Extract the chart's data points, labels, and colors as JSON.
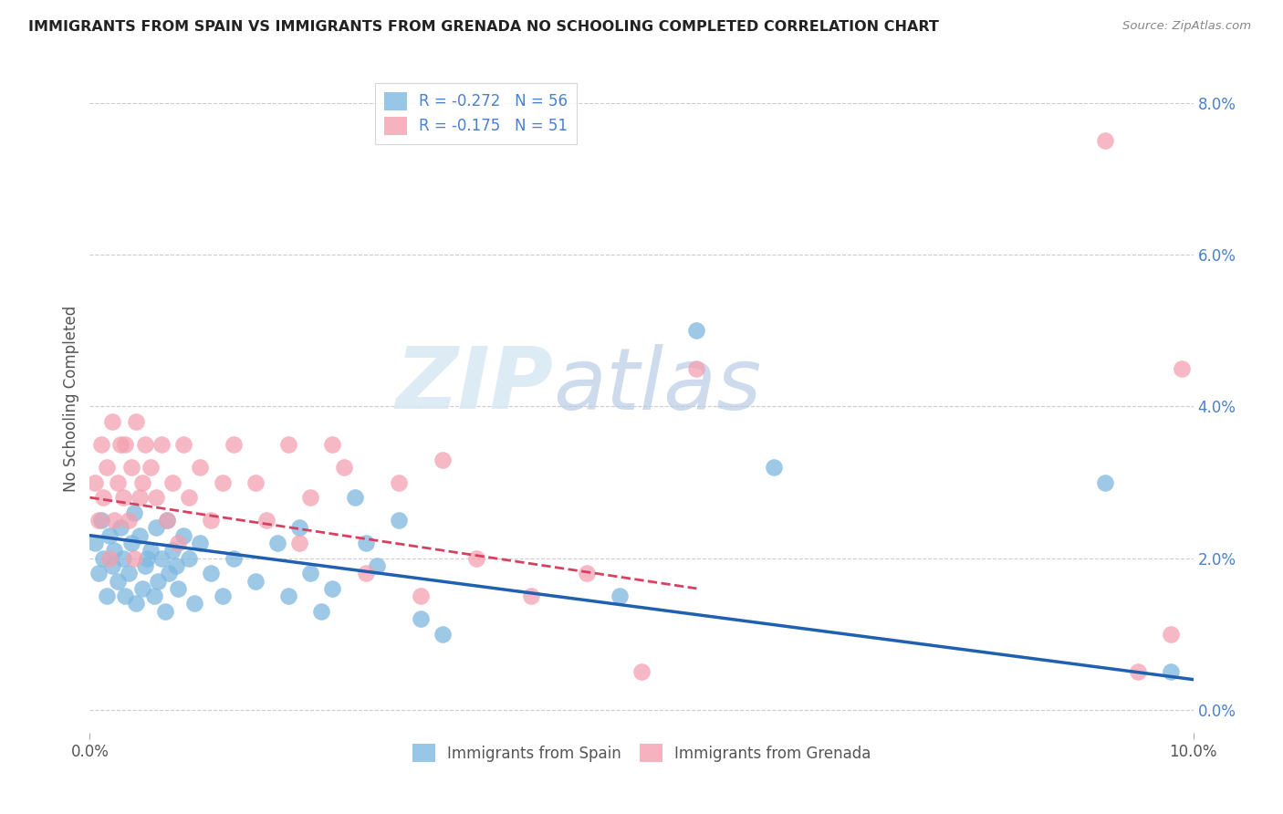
{
  "title": "IMMIGRANTS FROM SPAIN VS IMMIGRANTS FROM GRENADA NO SCHOOLING COMPLETED CORRELATION CHART",
  "source": "Source: ZipAtlas.com",
  "ylabel": "No Schooling Completed",
  "right_ytick_vals": [
    0.0,
    2.0,
    4.0,
    6.0,
    8.0
  ],
  "xmin": 0.0,
  "xmax": 10.0,
  "ymin": -0.3,
  "ymax": 8.5,
  "legend_entries": [
    {
      "label": "R = -0.272   N = 56",
      "color": "#aec6e8"
    },
    {
      "label": "R = -0.175   N = 51",
      "color": "#f4b8c8"
    }
  ],
  "legend_labels_bottom": [
    "Immigrants from Spain",
    "Immigrants from Grenada"
  ],
  "color_spain": "#7db8e0",
  "color_grenada": "#f4a0b0",
  "color_spain_line": "#2060b0",
  "color_grenada_line": "#d84060",
  "watermark_zip": "ZIP",
  "watermark_atlas": "atlas",
  "spain_x": [
    0.05,
    0.08,
    0.1,
    0.12,
    0.15,
    0.18,
    0.2,
    0.22,
    0.25,
    0.28,
    0.3,
    0.32,
    0.35,
    0.38,
    0.4,
    0.42,
    0.45,
    0.48,
    0.5,
    0.52,
    0.55,
    0.58,
    0.6,
    0.62,
    0.65,
    0.68,
    0.7,
    0.72,
    0.75,
    0.78,
    0.8,
    0.85,
    0.9,
    0.95,
    1.0,
    1.1,
    1.2,
    1.3,
    1.5,
    1.7,
    1.8,
    1.9,
    2.0,
    2.1,
    2.2,
    2.4,
    2.5,
    2.6,
    2.8,
    3.0,
    3.2,
    4.8,
    5.5,
    6.2,
    9.2,
    9.8
  ],
  "spain_y": [
    2.2,
    1.8,
    2.5,
    2.0,
    1.5,
    2.3,
    1.9,
    2.1,
    1.7,
    2.4,
    2.0,
    1.5,
    1.8,
    2.2,
    2.6,
    1.4,
    2.3,
    1.6,
    1.9,
    2.0,
    2.1,
    1.5,
    2.4,
    1.7,
    2.0,
    1.3,
    2.5,
    1.8,
    2.1,
    1.9,
    1.6,
    2.3,
    2.0,
    1.4,
    2.2,
    1.8,
    1.5,
    2.0,
    1.7,
    2.2,
    1.5,
    2.4,
    1.8,
    1.3,
    1.6,
    2.8,
    2.2,
    1.9,
    2.5,
    1.2,
    1.0,
    1.5,
    5.0,
    3.2,
    3.0,
    0.5
  ],
  "grenada_x": [
    0.05,
    0.08,
    0.1,
    0.12,
    0.15,
    0.18,
    0.2,
    0.22,
    0.25,
    0.28,
    0.3,
    0.32,
    0.35,
    0.38,
    0.4,
    0.42,
    0.45,
    0.48,
    0.5,
    0.55,
    0.6,
    0.65,
    0.7,
    0.75,
    0.8,
    0.85,
    0.9,
    1.0,
    1.1,
    1.2,
    1.3,
    1.5,
    1.6,
    1.8,
    1.9,
    2.0,
    2.2,
    2.3,
    2.5,
    2.8,
    3.0,
    3.2,
    3.5,
    4.0,
    4.5,
    5.0,
    5.5,
    9.2,
    9.5,
    9.8,
    9.9
  ],
  "grenada_y": [
    3.0,
    2.5,
    3.5,
    2.8,
    3.2,
    2.0,
    3.8,
    2.5,
    3.0,
    3.5,
    2.8,
    3.5,
    2.5,
    3.2,
    2.0,
    3.8,
    2.8,
    3.0,
    3.5,
    3.2,
    2.8,
    3.5,
    2.5,
    3.0,
    2.2,
    3.5,
    2.8,
    3.2,
    2.5,
    3.0,
    3.5,
    3.0,
    2.5,
    3.5,
    2.2,
    2.8,
    3.5,
    3.2,
    1.8,
    3.0,
    1.5,
    3.3,
    2.0,
    1.5,
    1.8,
    0.5,
    4.5,
    7.5,
    0.5,
    1.0,
    4.5
  ],
  "spain_line_x": [
    0.0,
    10.0
  ],
  "spain_line_y": [
    2.3,
    0.4
  ],
  "grenada_line_x": [
    0.0,
    5.5
  ],
  "grenada_line_y": [
    2.8,
    1.6
  ]
}
